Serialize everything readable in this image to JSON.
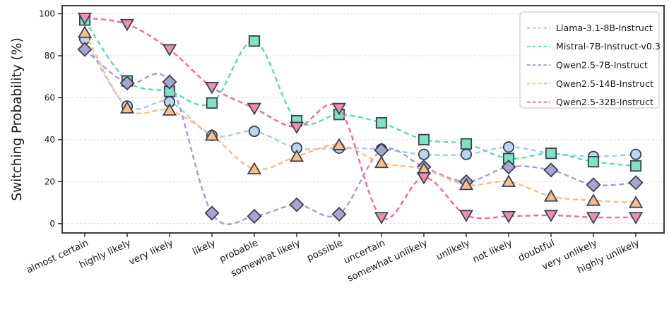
{
  "figure": {
    "kind": "line-chart-screenshot",
    "background_color": "#ffffff"
  },
  "chart_data": {
    "type": "line",
    "title": "",
    "xlabel": "",
    "ylabel": "Switching Probability (%)",
    "ylim": [
      0,
      100
    ],
    "yticks": [
      0,
      20,
      40,
      60,
      80,
      100
    ],
    "grid": "horizontal, light gray dashed",
    "legend_position": "upper-right",
    "line_style": "dashed, smooth spline interpolation",
    "categories": [
      "almost certain",
      "highly likely",
      "very likely",
      "likely",
      "probable",
      "somewhat likely",
      "possible",
      "uncertain",
      "somewhat unlikely",
      "unlikely",
      "not likely",
      "doubtful",
      "very unlikely",
      "highly unlikely"
    ],
    "series": [
      {
        "name": "Llama-3.1-8B-Instruct",
        "marker": "circle",
        "line_color": "#a8cbe8",
        "fill_color": "#b9d6ef",
        "values": [
          88,
          56,
          58,
          42,
          44,
          36,
          36,
          35.5,
          33,
          33,
          36.5,
          33.5,
          32,
          33
        ]
      },
      {
        "name": "Mistral-7B-Instruct-v0.3",
        "marker": "square",
        "line_color": "#62d8b3",
        "fill_color": "#7de3c2",
        "values": [
          97,
          68,
          63,
          57.5,
          87,
          49,
          52,
          48,
          40,
          38,
          31,
          33.5,
          29.5,
          27.5
        ]
      },
      {
        "name": "Qwen2.5-7B-Instruct",
        "marker": "diamond",
        "line_color": "#a49dd3",
        "fill_color": "#aaa4d2",
        "values": [
          83,
          67,
          67.5,
          5,
          3.5,
          9,
          4.5,
          35,
          27,
          20,
          27,
          25.5,
          18.5,
          19.5
        ]
      },
      {
        "name": "Qwen2.5-14B-Instruct",
        "marker": "triangle-up",
        "line_color": "#f9bd87",
        "fill_color": "#f6c08c",
        "values": [
          91,
          55,
          54,
          42,
          26,
          32,
          37.5,
          29,
          26,
          18.5,
          20,
          13,
          11,
          10
        ]
      },
      {
        "name": "Qwen2.5-32B-Instruct",
        "marker": "triangle-down",
        "line_color": "#ef6a9b",
        "fill_color": "#f18eae",
        "values": [
          98,
          95,
          83,
          65,
          55,
          46,
          55,
          3,
          22,
          4,
          3.5,
          4,
          3,
          3
        ]
      }
    ],
    "style": {
      "marker_edge_color": "#3a4150",
      "grid_color": "#dcdcdc",
      "axis_color": "#262626",
      "tick_label_color": "#1a1a1a",
      "legend_border_color": "#c0c0c0",
      "legend_background": "rgba(255,255,255,0.9)"
    }
  }
}
